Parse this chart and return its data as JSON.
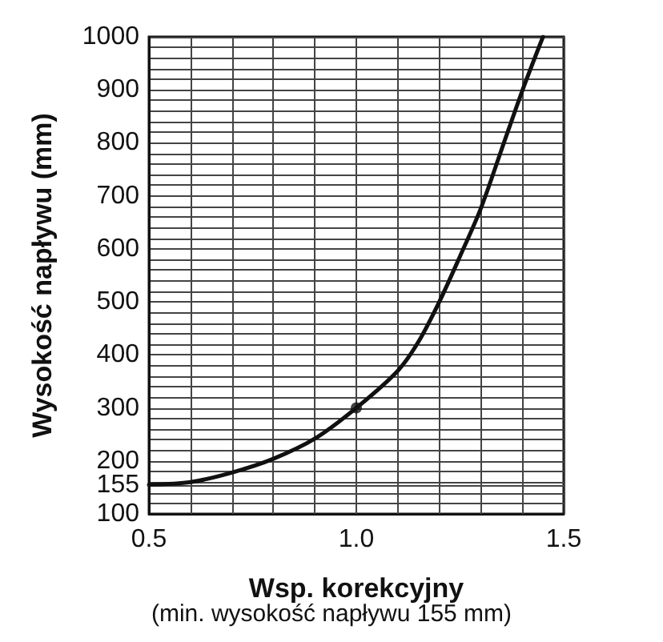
{
  "chart_data": {
    "type": "line",
    "xlabel": "Wsp. korekcyjny",
    "ylabel": "Wysokość napływu (mm)",
    "annotations": [
      "(min. wysokość napływu 155 mm)"
    ],
    "x": [
      0.5,
      0.6,
      0.7,
      0.8,
      0.9,
      1.0,
      1.1,
      1.15,
      1.2,
      1.25,
      1.3,
      1.35,
      1.4,
      1.45
    ],
    "series": [
      {
        "type": "line",
        "color": "#111111",
        "marker": "none",
        "values": [
          155,
          160,
          178,
          204,
          242,
          300,
          370,
          425,
          500,
          586,
          676,
          787,
          898,
          1000
        ]
      },
      {
        "type": "scatter",
        "color": "#111111",
        "marker": "circle",
        "x": [
          1.0
        ],
        "values": [
          300
        ]
      }
    ],
    "xlim": [
      0.5,
      1.5
    ],
    "xticks": [
      0.5,
      {
        "value": 0.6,
        "label": null
      },
      {
        "value": 0.7,
        "label": null
      },
      {
        "value": 0.8,
        "label": null
      },
      {
        "value": 0.9,
        "label": null
      },
      {
        "value": 1.0,
        "label": "1.0"
      },
      {
        "value": 1.1,
        "label": null
      },
      {
        "value": 1.2,
        "label": null
      },
      {
        "value": 1.3,
        "label": null
      },
      {
        "value": 1.4,
        "label": null
      },
      1.5
    ],
    "ylim": [
      100,
      1000
    ],
    "yticks": [
      100,
      {
        "value": 120,
        "label": null
      },
      {
        "value": 140,
        "label": null
      },
      155,
      {
        "value": 160,
        "label": null
      },
      {
        "value": 180,
        "label": null
      },
      200,
      {
        "value": 220,
        "label": null
      },
      {
        "value": 240,
        "label": null
      },
      {
        "value": 260,
        "label": null
      },
      {
        "value": 280,
        "label": null
      },
      300,
      {
        "value": 320,
        "label": null
      },
      {
        "value": 340,
        "label": null
      },
      {
        "value": 360,
        "label": null
      },
      {
        "value": 380,
        "label": null
      },
      400,
      {
        "value": 420,
        "label": null
      },
      {
        "value": 440,
        "label": null
      },
      {
        "value": 460,
        "label": null
      },
      {
        "value": 480,
        "label": null
      },
      500,
      {
        "value": 520,
        "label": null
      },
      {
        "value": 540,
        "label": null
      },
      {
        "value": 560,
        "label": null
      },
      {
        "value": 580,
        "label": null
      },
      600,
      {
        "value": 620,
        "label": null
      },
      {
        "value": 640,
        "label": null
      },
      {
        "value": 660,
        "label": null
      },
      {
        "value": 680,
        "label": null
      },
      700,
      {
        "value": 720,
        "label": null
      },
      {
        "value": 740,
        "label": null
      },
      {
        "value": 760,
        "label": null
      },
      {
        "value": 780,
        "label": null
      },
      800,
      {
        "value": 820,
        "label": null
      },
      {
        "value": 840,
        "label": null
      },
      {
        "value": 860,
        "label": null
      },
      {
        "value": 880,
        "label": null
      },
      900,
      {
        "value": 920,
        "label": null
      },
      {
        "value": 940,
        "label": null
      },
      {
        "value": 960,
        "label": null
      },
      {
        "value": 980,
        "label": null
      },
      1000
    ],
    "grid": true
  }
}
